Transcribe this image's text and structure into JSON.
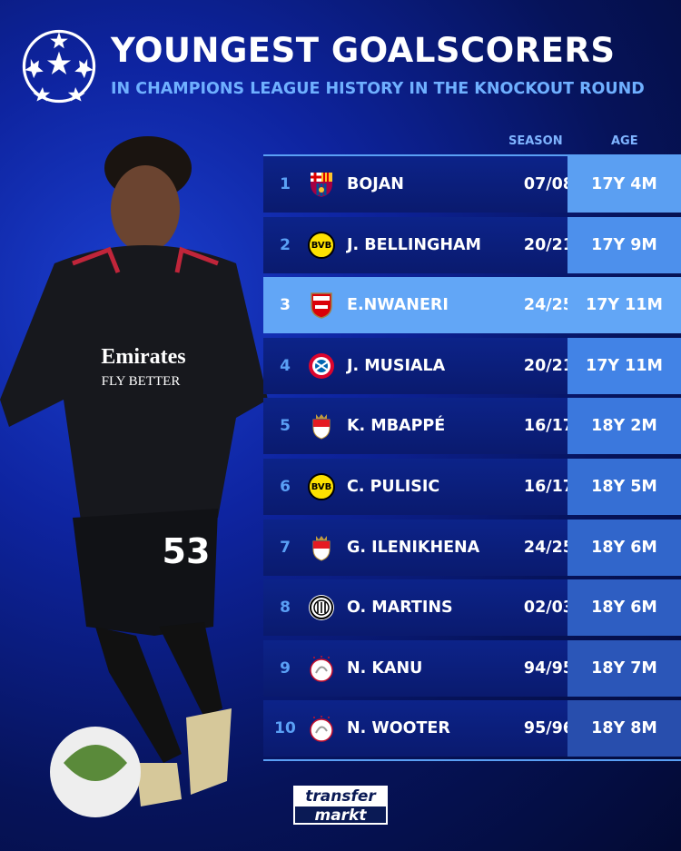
{
  "header": {
    "title": "YOUNGEST GOALSCORERS",
    "subtitle": "IN CHAMPIONS LEAGUE HISTORY IN THE KNOCKOUT ROUND"
  },
  "columns": {
    "season": "SEASON",
    "age": "AGE"
  },
  "rows": [
    {
      "rank": "1",
      "club": "Barcelona",
      "crest": "barcelona-crest",
      "name": "BOJAN",
      "season": "07/08",
      "age": "17Y 4M",
      "age_color": "#5b9ff2"
    },
    {
      "rank": "2",
      "club": "Borussia Dortmund",
      "crest": "bvb-crest",
      "name": "J. BELLINGHAM",
      "season": "20/21",
      "age": "17Y 9M",
      "age_color": "#4d90ec"
    },
    {
      "rank": "3",
      "club": "Arsenal",
      "crest": "arsenal-crest",
      "name": "E.NWANERI",
      "season": "24/25",
      "age": "17Y 11M",
      "age_color": "#62a6f6",
      "highlight": true
    },
    {
      "rank": "4",
      "club": "Bayern Munich",
      "crest": "bayern-crest",
      "name": "J. MUSIALA",
      "season": "20/21",
      "age": "17Y 11M",
      "age_color": "#4283e6"
    },
    {
      "rank": "5",
      "club": "Monaco",
      "crest": "monaco-crest",
      "name": "K. MBAPPÉ",
      "season": "16/17",
      "age": "18Y 2M",
      "age_color": "#3b78dd"
    },
    {
      "rank": "6",
      "club": "Borussia Dortmund",
      "crest": "bvb-crest",
      "name": "C. PULISIC",
      "season": "16/17",
      "age": "18Y 5M",
      "age_color": "#366fd4"
    },
    {
      "rank": "7",
      "club": "Monaco",
      "crest": "monaco-crest",
      "name": "G. ILENIKHENA",
      "season": "24/25",
      "age": "18Y 6M",
      "age_color": "#3166cb"
    },
    {
      "rank": "8",
      "club": "Inter",
      "crest": "inter-crest",
      "name": "O. MARTINS",
      "season": "02/03",
      "age": "18Y 6M",
      "age_color": "#2e5ec2"
    },
    {
      "rank": "9",
      "club": "Ajax",
      "crest": "ajax-crest",
      "name": "N. KANU",
      "season": "94/95",
      "age": "18Y 7M",
      "age_color": "#2b56b8"
    },
    {
      "rank": "10",
      "club": "Ajax",
      "crest": "ajax-crest",
      "name": "N. WOOTER",
      "season": "95/96",
      "age": "18Y 8M",
      "age_color": "#284ead"
    }
  ],
  "player": {
    "sponsor": "Emirates",
    "sponsor_tagline": "FLY BETTER",
    "number": "53"
  },
  "branding": {
    "logo_line1": "transfer",
    "logo_line2": "markt"
  }
}
